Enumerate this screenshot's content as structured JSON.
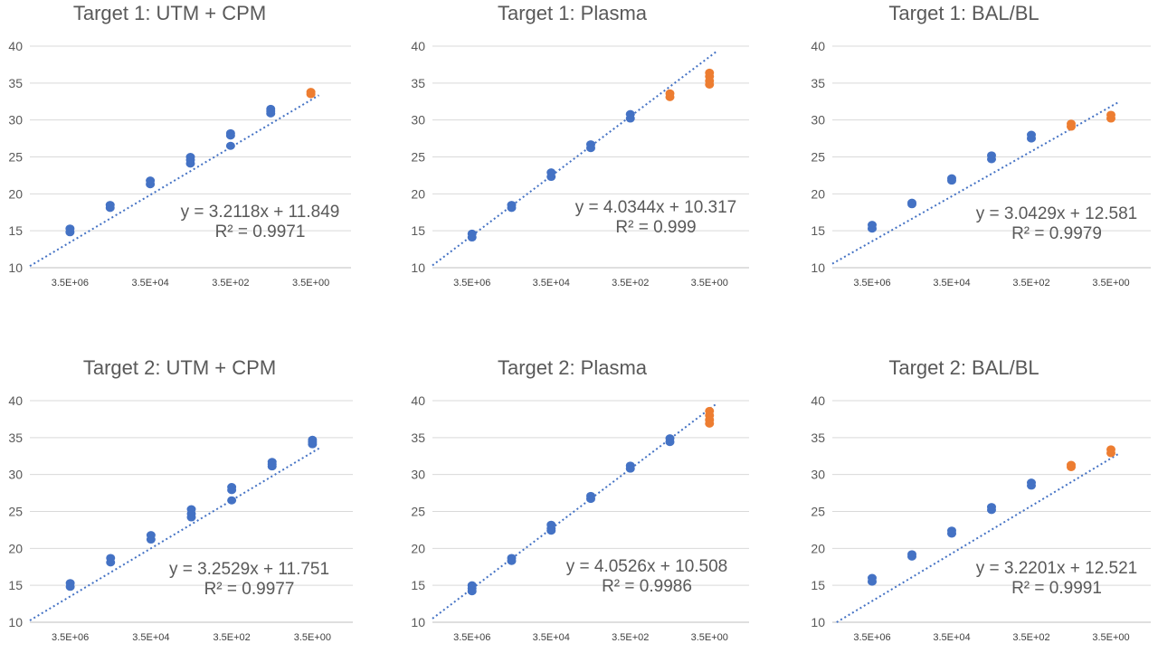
{
  "chart_data": [
    {
      "type": "scatter",
      "title": "Target 1: UTM + CPM",
      "ylim": [
        10,
        40
      ],
      "yticks": [
        10,
        15,
        20,
        25,
        30,
        35,
        40
      ],
      "xlabels": [
        "3.5E+06",
        "3.5E+04",
        "3.5E+02",
        "3.5E+00"
      ],
      "grid": true,
      "series": [
        {
          "color": "#4472C4",
          "points": [
            [
              1,
              15.3
            ],
            [
              1,
              14.8
            ],
            [
              2,
              18.5
            ],
            [
              2,
              18.1
            ],
            [
              3,
              21.8
            ],
            [
              3,
              21.3
            ],
            [
              4,
              25.0
            ],
            [
              4,
              24.6
            ],
            [
              4,
              24.1
            ],
            [
              5,
              28.2
            ],
            [
              5,
              27.9
            ],
            [
              5,
              26.5
            ],
            [
              6,
              31.5
            ],
            [
              6,
              31.2
            ],
            [
              6,
              30.9
            ]
          ]
        },
        {
          "color": "#ED7D31",
          "points": [
            [
              7,
              33.8
            ],
            [
              7,
              33.5
            ]
          ]
        }
      ],
      "trendline": {
        "slope": -3.2118,
        "intercept": 35.92
      },
      "equation": "y = 3.2118x + 11.849",
      "r2": "R² = 0.9971"
    },
    {
      "type": "scatter",
      "title": "Target 1: Plasma",
      "ylim": [
        10,
        40
      ],
      "yticks": [
        10,
        15,
        20,
        25,
        30,
        35,
        40
      ],
      "xlabels": [
        "3.5E+06",
        "3.5E+04",
        "3.5E+02",
        "3.5E+00"
      ],
      "grid": true,
      "series": [
        {
          "color": "#4472C4",
          "points": [
            [
              1,
              14.6
            ],
            [
              1,
              14.1
            ],
            [
              2,
              18.5
            ],
            [
              2,
              18.1
            ],
            [
              3,
              22.9
            ],
            [
              3,
              22.3
            ],
            [
              4,
              26.7
            ],
            [
              4,
              26.2
            ],
            [
              5,
              30.8
            ],
            [
              5,
              30.2
            ]
          ]
        },
        {
          "color": "#ED7D31",
          "points": [
            [
              6,
              33.6
            ],
            [
              6,
              33.1
            ],
            [
              7,
              36.4
            ],
            [
              7,
              35.9
            ],
            [
              7,
              35.3
            ],
            [
              7,
              34.8
            ]
          ]
        }
      ],
      "trendline": {
        "slope": -4.0344,
        "intercept": 42.59
      },
      "equation": "y = 4.0344x + 10.317",
      "r2": "R² = 0.999"
    },
    {
      "type": "scatter",
      "title": "Target 1: BAL/BL",
      "ylim": [
        10,
        40
      ],
      "yticks": [
        10,
        15,
        20,
        25,
        30,
        35,
        40
      ],
      "xlabels": [
        "3.5E+06",
        "3.5E+04",
        "3.5E+02",
        "3.5E+00"
      ],
      "grid": true,
      "series": [
        {
          "color": "#4472C4",
          "points": [
            [
              1,
              15.8
            ],
            [
              1,
              15.3
            ],
            [
              2,
              18.8
            ],
            [
              2,
              18.6
            ],
            [
              3,
              22.1
            ],
            [
              3,
              21.8
            ],
            [
              4,
              25.2
            ],
            [
              4,
              24.7
            ],
            [
              5,
              28.0
            ],
            [
              5,
              27.5
            ]
          ]
        },
        {
          "color": "#ED7D31",
          "points": [
            [
              6,
              29.5
            ],
            [
              6,
              29.1
            ],
            [
              7,
              30.7
            ],
            [
              7,
              30.2
            ]
          ]
        }
      ],
      "trendline": {
        "slope": -3.0429,
        "intercept": 34.88
      },
      "equation": "y = 3.0429x + 12.581",
      "r2": "R² = 0.9979"
    },
    {
      "type": "scatter",
      "title": "Target 2: UTM + CPM",
      "ylim": [
        10,
        40
      ],
      "yticks": [
        10,
        15,
        20,
        25,
        30,
        35,
        40
      ],
      "xlabels": [
        "3.5E+06",
        "3.5E+04",
        "3.5E+02",
        "3.5E+00"
      ],
      "grid": true,
      "series": [
        {
          "color": "#4472C4",
          "points": [
            [
              1,
              15.3
            ],
            [
              1,
              14.8
            ],
            [
              2,
              18.7
            ],
            [
              2,
              18.1
            ],
            [
              3,
              21.8
            ],
            [
              3,
              21.2
            ],
            [
              4,
              25.3
            ],
            [
              4,
              24.7
            ],
            [
              4,
              24.2
            ],
            [
              5,
              28.3
            ],
            [
              5,
              27.9
            ],
            [
              5,
              26.5
            ],
            [
              6,
              31.7
            ],
            [
              6,
              31.4
            ],
            [
              6,
              31.1
            ],
            [
              7,
              34.7
            ],
            [
              7,
              34.4
            ],
            [
              7,
              34.1
            ]
          ]
        }
      ],
      "trendline": {
        "slope": -3.2529,
        "intercept": 36.27
      },
      "equation": "y = 3.2529x + 11.751",
      "r2": "R² = 0.9977"
    },
    {
      "type": "scatter",
      "title": "Target 2: Plasma",
      "ylim": [
        10,
        40
      ],
      "yticks": [
        10,
        15,
        20,
        25,
        30,
        35,
        40
      ],
      "xlabels": [
        "3.5E+06",
        "3.5E+04",
        "3.5E+02",
        "3.5E+00"
      ],
      "grid": true,
      "series": [
        {
          "color": "#4472C4",
          "points": [
            [
              1,
              15.0
            ],
            [
              1,
              14.6
            ],
            [
              1,
              14.2
            ],
            [
              2,
              18.7
            ],
            [
              2,
              18.3
            ],
            [
              3,
              23.2
            ],
            [
              3,
              22.7
            ],
            [
              3,
              22.4
            ],
            [
              4,
              27.1
            ],
            [
              4,
              26.7
            ],
            [
              5,
              31.2
            ],
            [
              5,
              30.8
            ],
            [
              6,
              34.9
            ],
            [
              6,
              34.4
            ]
          ]
        },
        {
          "color": "#ED7D31",
          "points": [
            [
              7,
              38.6
            ],
            [
              7,
              38.0
            ],
            [
              7,
              37.4
            ],
            [
              7,
              36.9
            ]
          ]
        }
      ],
      "trendline": {
        "slope": -4.0526,
        "intercept": 42.92
      },
      "equation": "y = 4.0526x + 10.508",
      "r2": "R² = 0.9986"
    },
    {
      "type": "scatter",
      "title": "Target 2: BAL/BL",
      "ylim": [
        10,
        40
      ],
      "yticks": [
        10,
        15,
        20,
        25,
        30,
        35,
        40
      ],
      "xlabels": [
        "3.5E+06",
        "3.5E+04",
        "3.5E+02",
        "3.5E+00"
      ],
      "grid": true,
      "series": [
        {
          "color": "#4472C4",
          "points": [
            [
              1,
              16.0
            ],
            [
              1,
              15.5
            ],
            [
              2,
              19.2
            ],
            [
              2,
              18.9
            ],
            [
              3,
              22.4
            ],
            [
              3,
              22.0
            ],
            [
              4,
              25.6
            ],
            [
              4,
              25.2
            ],
            [
              5,
              28.9
            ],
            [
              5,
              28.5
            ]
          ]
        },
        {
          "color": "#ED7D31",
          "points": [
            [
              6,
              31.3
            ],
            [
              6,
              31.0
            ],
            [
              7,
              33.4
            ],
            [
              7,
              32.9
            ]
          ]
        }
      ],
      "trendline": {
        "slope": -3.2201,
        "intercept": 35.41
      },
      "equation": "y = 3.2201x + 12.521",
      "r2": "R² = 0.9991"
    }
  ]
}
